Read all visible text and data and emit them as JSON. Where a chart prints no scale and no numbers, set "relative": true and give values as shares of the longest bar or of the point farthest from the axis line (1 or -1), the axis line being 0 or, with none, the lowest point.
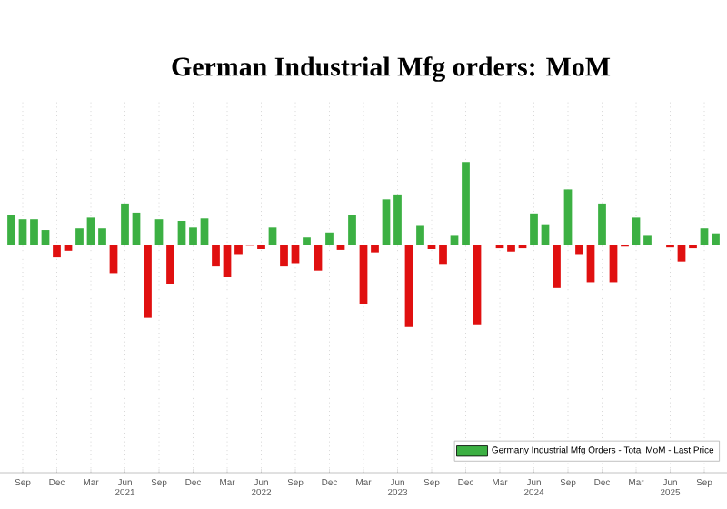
{
  "chart_data": {
    "type": "bar",
    "title": "German Industrial Mfg orders: MoM",
    "relative": true,
    "grid": "x",
    "legend": "bottom right",
    "x": [
      "2020-08",
      "2020-09",
      "2020-10",
      "2020-11",
      "2020-12",
      "2021-01",
      "2021-02",
      "2021-03",
      "2021-04",
      "2021-05",
      "2021-06",
      "2021-07",
      "2021-08",
      "2021-09",
      "2021-10",
      "2021-11",
      "2021-12",
      "2022-01",
      "2022-02",
      "2022-03",
      "2022-04",
      "2022-05",
      "2022-06",
      "2022-07",
      "2022-08",
      "2022-09",
      "2022-10",
      "2022-11",
      "2022-12",
      "2023-01",
      "2023-02",
      "2023-03",
      "2023-04",
      "2023-05",
      "2023-06",
      "2023-07",
      "2023-08",
      "2023-09",
      "2023-10",
      "2023-11",
      "2023-12",
      "2024-01",
      "2024-02",
      "2024-03",
      "2024-04",
      "2024-05",
      "2024-06",
      "2024-07",
      "2024-08",
      "2024-09",
      "2024-10",
      "2024-11",
      "2024-12",
      "2025-01",
      "2025-02",
      "2025-03",
      "2025-04",
      "2025-05",
      "2025-06",
      "2025-07",
      "2025-08",
      "2025-09",
      "2025-10"
    ],
    "xlim": [
      "2020-07",
      "2025-11"
    ],
    "xticks": [
      {
        "value": "2020-09",
        "label": "Sep"
      },
      {
        "value": "2020-12",
        "label": "Dec"
      },
      {
        "value": "2021-03",
        "label": "Mar"
      },
      {
        "value": "2021-06",
        "label": "Jun 2021"
      },
      {
        "value": "2021-09",
        "label": "Sep"
      },
      {
        "value": "2021-12",
        "label": "Dec"
      },
      {
        "value": "2022-03",
        "label": "Mar"
      },
      {
        "value": "2022-06",
        "label": "Jun 2022"
      },
      {
        "value": "2022-09",
        "label": "Sep"
      },
      {
        "value": "2022-12",
        "label": "Dec"
      },
      {
        "value": "2023-03",
        "label": "Mar"
      },
      {
        "value": "2023-06",
        "label": "Jun 2023"
      },
      {
        "value": "2023-09",
        "label": "Sep"
      },
      {
        "value": "2023-12",
        "label": "Dec"
      },
      {
        "value": "2024-03",
        "label": "Mar"
      },
      {
        "value": "2024-06",
        "label": "Jun 2024"
      },
      {
        "value": "2024-09",
        "label": "Sep"
      },
      {
        "value": "2024-12",
        "label": "Dec"
      },
      {
        "value": "2025-03",
        "label": "Mar"
      },
      {
        "value": "2025-06",
        "label": "Jun 2025"
      },
      {
        "value": "2025-09",
        "label": "Sep"
      }
    ],
    "series": [
      {
        "name": "Germany Industrial Mfg Orders - Total MoM - Last Price",
        "color": "#3cb043",
        "values": [
          0.36,
          0.31,
          0.31,
          0.18,
          -0.15,
          -0.07,
          0.2,
          0.33,
          0.2,
          -0.34,
          0.5,
          0.39,
          -0.88,
          0.31,
          -0.47,
          0.29,
          0.21,
          0.32,
          -0.26,
          -0.39,
          -0.11,
          -0.01,
          -0.05,
          0.21,
          -0.26,
          -0.22,
          0.09,
          -0.31,
          0.15,
          -0.06,
          0.36,
          -0.71,
          -0.09,
          0.55,
          0.61,
          -0.99,
          0.23,
          -0.05,
          -0.24,
          0.11,
          1,
          -0.97,
          0,
          -0.04,
          -0.08,
          -0.04,
          0.38,
          0.25,
          -0.52,
          0.67,
          -0.11,
          -0.45,
          0.5,
          -0.45,
          -0.02,
          0.33,
          0.11,
          0,
          -0.03,
          -0.2,
          -0.04,
          0.2,
          0.14
        ],
        "colors": [
          "#3cb043",
          "#3cb043",
          "#3cb043",
          "#3cb043",
          "#e01010",
          "#e01010",
          "#3cb043",
          "#3cb043",
          "#3cb043",
          "#e01010",
          "#3cb043",
          "#3cb043",
          "#e01010",
          "#3cb043",
          "#e01010",
          "#3cb043",
          "#3cb043",
          "#3cb043",
          "#e01010",
          "#e01010",
          "#e01010",
          "#e01010",
          "#e01010",
          "#3cb043",
          "#e01010",
          "#e01010",
          "#3cb043",
          "#e01010",
          "#3cb043",
          "#e01010",
          "#3cb043",
          "#e01010",
          "#e01010",
          "#3cb043",
          "#3cb043",
          "#e01010",
          "#3cb043",
          "#e01010",
          "#e01010",
          "#3cb043",
          "#3cb043",
          "#e01010",
          "#e01010",
          "#e01010",
          "#e01010",
          "#e01010",
          "#3cb043",
          "#3cb043",
          "#e01010",
          "#3cb043",
          "#e01010",
          "#e01010",
          "#3cb043",
          "#e01010",
          "#e01010",
          "#3cb043",
          "#3cb043",
          "#e01010",
          "#e01010",
          "#e01010",
          "#e01010",
          "#3cb043",
          "#3cb043"
        ]
      }
    ]
  }
}
